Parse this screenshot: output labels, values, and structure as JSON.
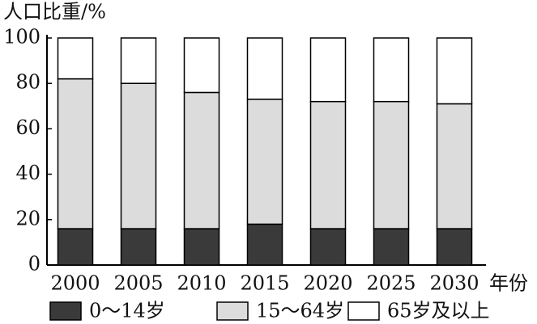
{
  "chart_data": {
    "type": "stacked-bar",
    "y_label": "人口比重/%",
    "x_label": "年份",
    "categories": [
      "2000",
      "2005",
      "2010",
      "2015",
      "2020",
      "2025",
      "2030"
    ],
    "series": [
      {
        "name": "0～14岁",
        "color": "#3a3a3a",
        "values": [
          16,
          16,
          16,
          18,
          16,
          16,
          16
        ]
      },
      {
        "name": "15～64岁",
        "color": "#dcdcdc",
        "values": [
          66,
          64,
          60,
          55,
          56,
          56,
          55
        ]
      },
      {
        "name": "65岁及以上",
        "color": "#ffffff",
        "values": [
          18,
          20,
          24,
          27,
          28,
          28,
          29
        ]
      }
    ],
    "ylim": [
      0,
      100
    ],
    "yticks": [
      0,
      20,
      40,
      60,
      80,
      100
    ]
  }
}
